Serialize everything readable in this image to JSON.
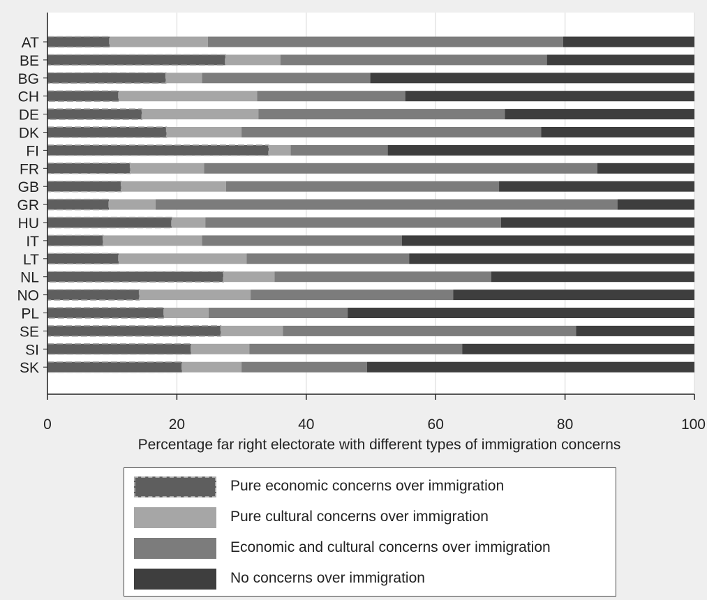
{
  "chart_data": {
    "type": "bar",
    "orientation": "horizontal",
    "stacked": true,
    "title": "",
    "xlabel": "Percentage far right electorate with different types of immigration concerns",
    "ylabel": "",
    "xlim": [
      0,
      100
    ],
    "xticks": [
      0,
      20,
      40,
      60,
      80,
      100
    ],
    "grid": "vertical",
    "legend_position": "bottom",
    "categories": [
      "AT",
      "BE",
      "BG",
      "CH",
      "DE",
      "DK",
      "FI",
      "FR",
      "GB",
      "GR",
      "HU",
      "IT",
      "LT",
      "NL",
      "NO",
      "PL",
      "SE",
      "SI",
      "SK"
    ],
    "series": [
      {
        "name": "Pure economic concerns over immigration",
        "color": "#5e5e5e",
        "dashed_outline": true,
        "values": [
          9.6,
          27.5,
          18.3,
          11.0,
          14.6,
          18.4,
          34.2,
          12.8,
          11.4,
          9.5,
          19.2,
          8.6,
          11.0,
          27.2,
          14.2,
          18.0,
          26.8,
          22.2,
          20.8
        ]
      },
      {
        "name": "Pure cultural concerns over immigration",
        "color": "#a6a6a6",
        "values": [
          15.2,
          8.5,
          5.6,
          21.4,
          18.0,
          11.6,
          3.4,
          11.4,
          16.2,
          7.2,
          5.2,
          15.3,
          19.8,
          7.9,
          17.2,
          6.9,
          9.6,
          9.0,
          9.2
        ]
      },
      {
        "name": "Economic and cultural concerns over immigration",
        "color": "#7c7c7c",
        "values": [
          54.9,
          41.2,
          26.0,
          22.9,
          38.1,
          46.3,
          15.0,
          60.8,
          42.2,
          71.4,
          45.7,
          30.9,
          25.1,
          33.5,
          31.3,
          21.5,
          45.3,
          32.9,
          19.4
        ]
      },
      {
        "name": "No concerns over immigration",
        "color": "#3e3e3e",
        "values": [
          20.3,
          22.8,
          50.1,
          44.7,
          29.3,
          23.7,
          47.4,
          15.0,
          30.2,
          11.9,
          29.9,
          45.2,
          44.1,
          31.4,
          37.3,
          53.6,
          18.3,
          35.9,
          50.6
        ]
      }
    ]
  }
}
